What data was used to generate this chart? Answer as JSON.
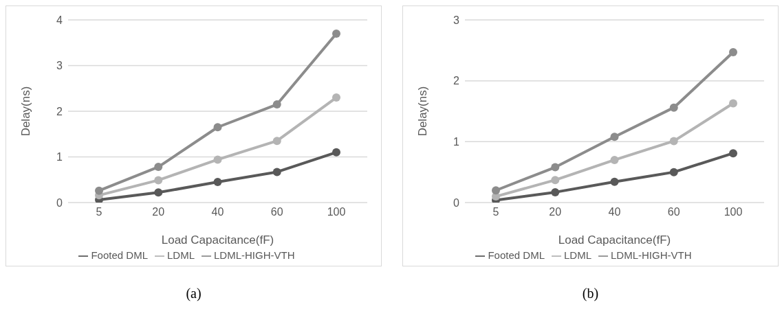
{
  "chart_data": [
    {
      "type": "line",
      "xlabel": "Load Capacitance(fF)",
      "ylabel": "Delay(ns)",
      "categories": [
        "5",
        "20",
        "40",
        "60",
        "100"
      ],
      "ylim": [
        0,
        4
      ],
      "yticks": [
        0,
        1,
        2,
        3,
        4
      ],
      "grid": "y",
      "legend": "bottom",
      "marker": "circle",
      "annotations": [
        "(a)"
      ],
      "series": [
        {
          "name": "Footed DML",
          "color": "#595959",
          "values": [
            0.06,
            0.22,
            0.45,
            0.67,
            1.1
          ]
        },
        {
          "name": "LDML",
          "color": "#b4b4b4",
          "values": [
            0.16,
            0.49,
            0.94,
            1.35,
            2.3
          ]
        },
        {
          "name": "LDML-HIGH-VTH",
          "color": "#8c8c8c",
          "values": [
            0.26,
            0.78,
            1.65,
            2.15,
            3.7
          ]
        }
      ]
    },
    {
      "type": "line",
      "xlabel": "Load Capacitance(fF)",
      "ylabel": "Delay(ns)",
      "categories": [
        "5",
        "20",
        "40",
        "60",
        "100"
      ],
      "ylim": [
        0,
        3
      ],
      "yticks": [
        0,
        1,
        2,
        3
      ],
      "grid": "y",
      "legend": "bottom",
      "marker": "circle",
      "annotations": [
        "(b)"
      ],
      "series": [
        {
          "name": "Footed DML",
          "color": "#595959",
          "values": [
            0.04,
            0.17,
            0.34,
            0.5,
            0.81
          ]
        },
        {
          "name": "LDML",
          "color": "#b4b4b4",
          "values": [
            0.1,
            0.37,
            0.7,
            1.01,
            1.63
          ]
        },
        {
          "name": "LDML-HIGH-VTH",
          "color": "#8c8c8c",
          "values": [
            0.2,
            0.58,
            1.08,
            1.56,
            2.47
          ]
        }
      ]
    }
  ]
}
